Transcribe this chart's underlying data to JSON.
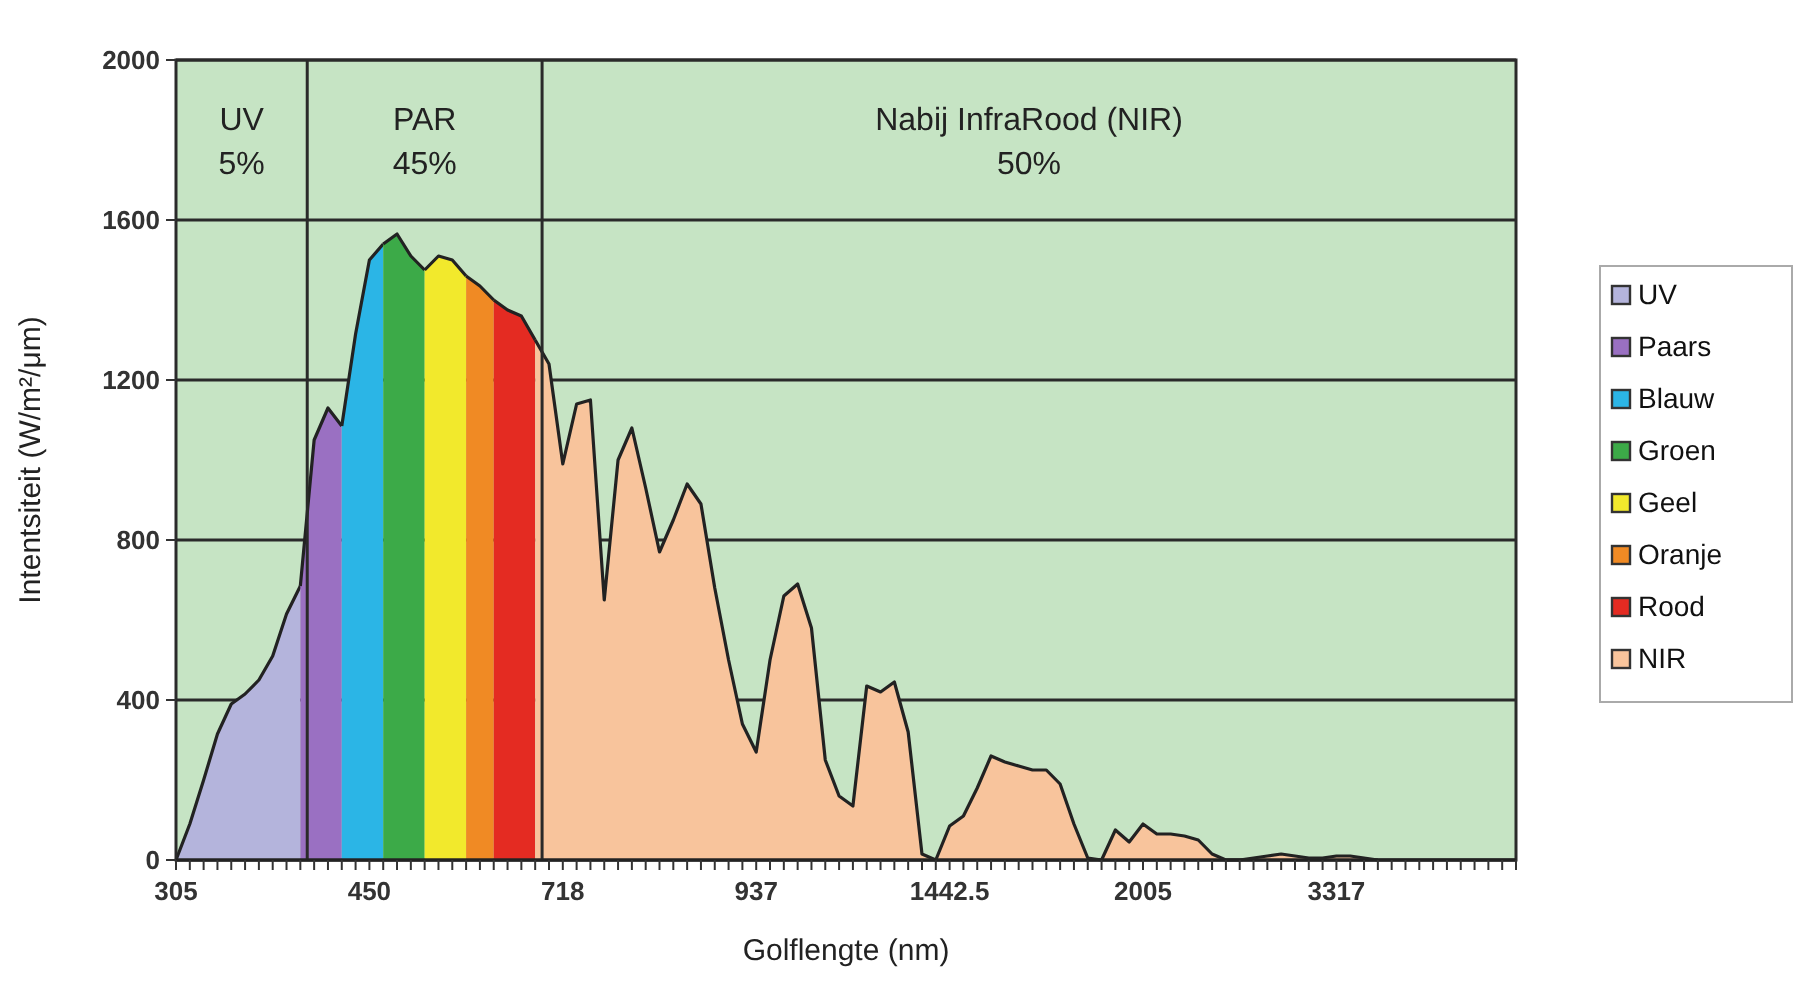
{
  "chart_data": {
    "type": "area",
    "xlabel": "Golflengte (nm)",
    "ylabel": "Intentsiteit (W/m²/μm)",
    "categories": [
      "305",
      null,
      null,
      null,
      null,
      null,
      null,
      null,
      null,
      null,
      null,
      null,
      null,
      null,
      "450",
      null,
      null,
      null,
      null,
      null,
      null,
      null,
      null,
      null,
      null,
      null,
      null,
      null,
      "718",
      null,
      null,
      null,
      null,
      null,
      null,
      null,
      null,
      null,
      null,
      null,
      null,
      null,
      "937",
      null,
      null,
      null,
      null,
      null,
      null,
      null,
      null,
      null,
      null,
      null,
      null,
      null,
      "1442.5",
      null,
      null,
      null,
      null,
      null,
      null,
      null,
      null,
      null,
      null,
      null,
      null,
      null,
      "2005",
      null,
      null,
      null,
      null,
      null,
      null,
      null,
      null,
      null,
      null,
      null,
      null,
      null,
      "3317",
      null,
      null,
      null,
      null,
      null,
      null,
      null,
      null,
      null,
      null,
      null,
      null,
      null
    ],
    "series": [
      {
        "name": "UV",
        "color": "#b4b4dc",
        "values": [
          0,
          90,
          200,
          315,
          390,
          415,
          450,
          510,
          615,
          685,
          null,
          null,
          null,
          null,
          null,
          null,
          null,
          null,
          null,
          null,
          null,
          null,
          null,
          null,
          null,
          null,
          null,
          null,
          null,
          null,
          null,
          null,
          null,
          null,
          null,
          null,
          null,
          null,
          null,
          null,
          null,
          null,
          null,
          null,
          null,
          null,
          null,
          null,
          null,
          null,
          null,
          null,
          null,
          null,
          null,
          null,
          null,
          null,
          null,
          null,
          null,
          null,
          null,
          null,
          null,
          null,
          null,
          null,
          null,
          null,
          null,
          null,
          null,
          null,
          null,
          null,
          null,
          null,
          null,
          null,
          null,
          null,
          null,
          null,
          null,
          null,
          null,
          null,
          null,
          null,
          null,
          null,
          null,
          null,
          null,
          null,
          null,
          null
        ]
      },
      {
        "name": "Paars",
        "color": "#9a70c2",
        "values": [
          null,
          null,
          null,
          null,
          null,
          null,
          null,
          null,
          null,
          685,
          1050,
          1130,
          1085,
          null,
          null,
          null,
          null,
          null,
          null,
          null,
          null,
          null,
          null,
          null,
          null,
          null,
          null,
          null,
          null,
          null,
          null,
          null,
          null,
          null,
          null,
          null,
          null,
          null,
          null,
          null,
          null,
          null,
          null,
          null,
          null,
          null,
          null,
          null,
          null,
          null,
          null,
          null,
          null,
          null,
          null,
          null,
          null,
          null,
          null,
          null,
          null,
          null,
          null,
          null,
          null,
          null,
          null,
          null,
          null,
          null,
          null,
          null,
          null,
          null,
          null,
          null,
          null,
          null,
          null,
          null,
          null,
          null,
          null,
          null,
          null,
          null,
          null,
          null,
          null,
          null,
          null,
          null,
          null,
          null,
          null,
          null,
          null,
          null
        ]
      },
      {
        "name": "Blauw",
        "color": "#2bb5e6",
        "values": [
          null,
          null,
          null,
          null,
          null,
          null,
          null,
          null,
          null,
          null,
          null,
          null,
          1085,
          1315,
          1500,
          1540,
          null,
          null,
          null,
          null,
          null,
          null,
          null,
          null,
          null,
          null,
          null,
          null,
          null,
          null,
          null,
          null,
          null,
          null,
          null,
          null,
          null,
          null,
          null,
          null,
          null,
          null,
          null,
          null,
          null,
          null,
          null,
          null,
          null,
          null,
          null,
          null,
          null,
          null,
          null,
          null,
          null,
          null,
          null,
          null,
          null,
          null,
          null,
          null,
          null,
          null,
          null,
          null,
          null,
          null,
          null,
          null,
          null,
          null,
          null,
          null,
          null,
          null,
          null,
          null,
          null,
          null,
          null,
          null,
          null,
          null,
          null,
          null,
          null,
          null,
          null,
          null,
          null,
          null,
          null,
          null,
          null,
          null
        ]
      },
      {
        "name": "Groen",
        "color": "#3caa48",
        "values": [
          null,
          null,
          null,
          null,
          null,
          null,
          null,
          null,
          null,
          null,
          null,
          null,
          null,
          null,
          null,
          1540,
          1565,
          1510,
          1475,
          null,
          null,
          null,
          null,
          null,
          null,
          null,
          null,
          null,
          null,
          null,
          null,
          null,
          null,
          null,
          null,
          null,
          null,
          null,
          null,
          null,
          null,
          null,
          null,
          null,
          null,
          null,
          null,
          null,
          null,
          null,
          null,
          null,
          null,
          null,
          null,
          null,
          null,
          null,
          null,
          null,
          null,
          null,
          null,
          null,
          null,
          null,
          null,
          null,
          null,
          null,
          null,
          null,
          null,
          null,
          null,
          null,
          null,
          null,
          null,
          null,
          null,
          null,
          null,
          null,
          null,
          null,
          null,
          null,
          null,
          null,
          null,
          null,
          null,
          null,
          null,
          null,
          null,
          null
        ]
      },
      {
        "name": "Geel",
        "color": "#f2e92c",
        "values": [
          null,
          null,
          null,
          null,
          null,
          null,
          null,
          null,
          null,
          null,
          null,
          null,
          null,
          null,
          null,
          null,
          null,
          null,
          1475,
          1510,
          1500,
          1460,
          null,
          null,
          null,
          null,
          null,
          null,
          null,
          null,
          null,
          null,
          null,
          null,
          null,
          null,
          null,
          null,
          null,
          null,
          null,
          null,
          null,
          null,
          null,
          null,
          null,
          null,
          null,
          null,
          null,
          null,
          null,
          null,
          null,
          null,
          null,
          null,
          null,
          null,
          null,
          null,
          null,
          null,
          null,
          null,
          null,
          null,
          null,
          null,
          null,
          null,
          null,
          null,
          null,
          null,
          null,
          null,
          null,
          null,
          null,
          null,
          null,
          null,
          null,
          null,
          null,
          null,
          null,
          null,
          null,
          null,
          null,
          null,
          null,
          null,
          null,
          null
        ]
      },
      {
        "name": "Oranje",
        "color": "#f08a24",
        "values": [
          null,
          null,
          null,
          null,
          null,
          null,
          null,
          null,
          null,
          null,
          null,
          null,
          null,
          null,
          null,
          null,
          null,
          null,
          null,
          null,
          null,
          1460,
          1435,
          1400,
          null,
          null,
          null,
          null,
          null,
          null,
          null,
          null,
          null,
          null,
          null,
          null,
          null,
          null,
          null,
          null,
          null,
          null,
          null,
          null,
          null,
          null,
          null,
          null,
          null,
          null,
          null,
          null,
          null,
          null,
          null,
          null,
          null,
          null,
          null,
          null,
          null,
          null,
          null,
          null,
          null,
          null,
          null,
          null,
          null,
          null,
          null,
          null,
          null,
          null,
          null,
          null,
          null,
          null,
          null,
          null,
          null,
          null,
          null,
          null,
          null,
          null,
          null,
          null,
          null,
          null,
          null,
          null,
          null,
          null,
          null,
          null,
          null,
          null
        ]
      },
      {
        "name": "Rood",
        "color": "#e42b22",
        "values": [
          null,
          null,
          null,
          null,
          null,
          null,
          null,
          null,
          null,
          null,
          null,
          null,
          null,
          null,
          null,
          null,
          null,
          null,
          null,
          null,
          null,
          null,
          null,
          1400,
          1375,
          1360,
          1300,
          null,
          null,
          null,
          null,
          null,
          null,
          null,
          null,
          null,
          null,
          null,
          null,
          null,
          null,
          null,
          null,
          null,
          null,
          null,
          null,
          null,
          null,
          null,
          null,
          null,
          null,
          null,
          null,
          null,
          null,
          null,
          null,
          null,
          null,
          null,
          null,
          null,
          null,
          null,
          null,
          null,
          null,
          null,
          null,
          null,
          null,
          null,
          null,
          null,
          null,
          null,
          null,
          null,
          null,
          null,
          null,
          null,
          null,
          null,
          null,
          null,
          null,
          null,
          null,
          null,
          null,
          null,
          null,
          null,
          null,
          null
        ]
      },
      {
        "name": "NIR",
        "color": "#f8c49c",
        "values": [
          null,
          null,
          null,
          null,
          null,
          null,
          null,
          null,
          null,
          null,
          null,
          null,
          null,
          null,
          null,
          null,
          null,
          null,
          null,
          null,
          null,
          null,
          null,
          null,
          null,
          null,
          1300,
          1240,
          990,
          1140,
          1150,
          650,
          1000,
          1080,
          930,
          770,
          850,
          940,
          890,
          680,
          500,
          340,
          270,
          500,
          660,
          690,
          580,
          250,
          160,
          135,
          435,
          420,
          445,
          320,
          15,
          0,
          85,
          110,
          180,
          260,
          245,
          235,
          225,
          225,
          190,
          90,
          5,
          0,
          75,
          45,
          90,
          65,
          65,
          60,
          50,
          15,
          0,
          0,
          5,
          10,
          15,
          10,
          5,
          5,
          10,
          10,
          5,
          0,
          null,
          null,
          null,
          null,
          null,
          null,
          null,
          null,
          null,
          null
        ]
      }
    ],
    "ylim": [
      0,
      2000
    ],
    "yticks": [
      0,
      400,
      800,
      1200,
      1600,
      2000
    ],
    "grid": "y",
    "legend": "right",
    "annotations": [
      "UV\n5%",
      "PAR\n45%",
      "Nabij InfraRood (NIR)\n50%"
    ]
  }
}
